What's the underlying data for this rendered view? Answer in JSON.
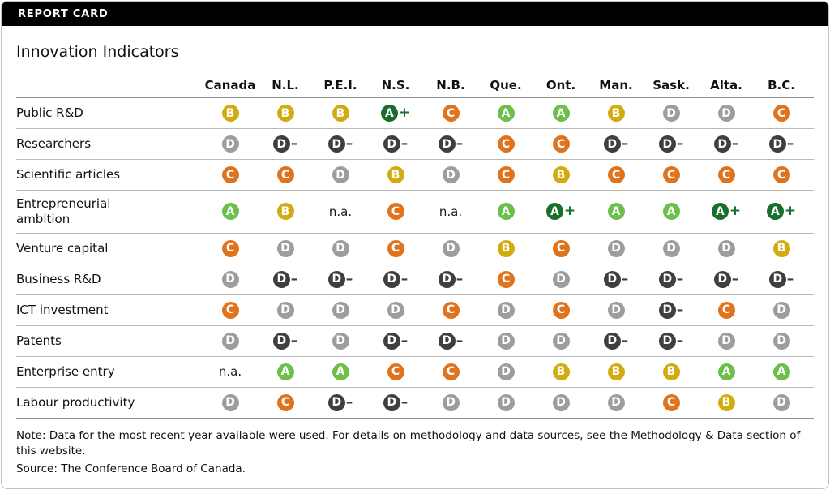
{
  "report_card_label": "REPORT CARD",
  "title": "Innovation Indicators",
  "chart_data": {
    "type": "table",
    "title": "Innovation Indicators",
    "columns": [
      "Canada",
      "N.L.",
      "P.E.I.",
      "N.S.",
      "N.B.",
      "Que.",
      "Ont.",
      "Man.",
      "Sask.",
      "Alta.",
      "B.C."
    ],
    "rows": [
      {
        "label": "Public R&D",
        "grades": [
          "B",
          "B",
          "B",
          "A+",
          "C",
          "A",
          "A",
          "B",
          "D",
          "D",
          "C"
        ]
      },
      {
        "label": "Researchers",
        "grades": [
          "D",
          "D-",
          "D-",
          "D-",
          "D-",
          "C",
          "C",
          "D-",
          "D-",
          "D-",
          "D-"
        ]
      },
      {
        "label": "Scientific articles",
        "grades": [
          "C",
          "C",
          "D",
          "B",
          "D",
          "C",
          "B",
          "C",
          "C",
          "C",
          "C"
        ]
      },
      {
        "label": "Entrepreneurial ambition",
        "grades": [
          "A",
          "B",
          "n.a.",
          "C",
          "n.a.",
          "A",
          "A+",
          "A",
          "A",
          "A+",
          "A+"
        ]
      },
      {
        "label": "Venture capital",
        "grades": [
          "C",
          "D",
          "D",
          "C",
          "D",
          "B",
          "C",
          "D",
          "D",
          "D",
          "B"
        ]
      },
      {
        "label": "Business R&D",
        "grades": [
          "D",
          "D-",
          "D-",
          "D-",
          "D-",
          "C",
          "D",
          "D-",
          "D-",
          "D-",
          "D-"
        ]
      },
      {
        "label": "ICT investment",
        "grades": [
          "C",
          "D",
          "D",
          "D",
          "C",
          "D",
          "C",
          "D",
          "D-",
          "C",
          "D"
        ]
      },
      {
        "label": "Patents",
        "grades": [
          "D",
          "D-",
          "D",
          "D-",
          "D-",
          "D",
          "D",
          "D-",
          "D-",
          "D",
          "D"
        ]
      },
      {
        "label": "Enterprise entry",
        "grades": [
          "n.a.",
          "A",
          "A",
          "C",
          "C",
          "D",
          "B",
          "B",
          "B",
          "A",
          "A"
        ]
      },
      {
        "label": "Labour productivity",
        "grades": [
          "D",
          "C",
          "D-",
          "D-",
          "D",
          "D",
          "D",
          "D",
          "C",
          "B",
          "D"
        ]
      }
    ],
    "na_label": "n.a.",
    "grade_colors": {
      "A+": "#176f2b",
      "A": "#6cbf4b",
      "B": "#d1ab10",
      "C": "#e0731d",
      "D": "#9d9d9d",
      "D-": "#3f3f3f"
    }
  },
  "footnote": {
    "note": "Note: Data for the most recent year available were used. For details on methodology and data sources, see the Methodology & Data section of this website.",
    "source": "Source: The Conference Board of Canada."
  }
}
